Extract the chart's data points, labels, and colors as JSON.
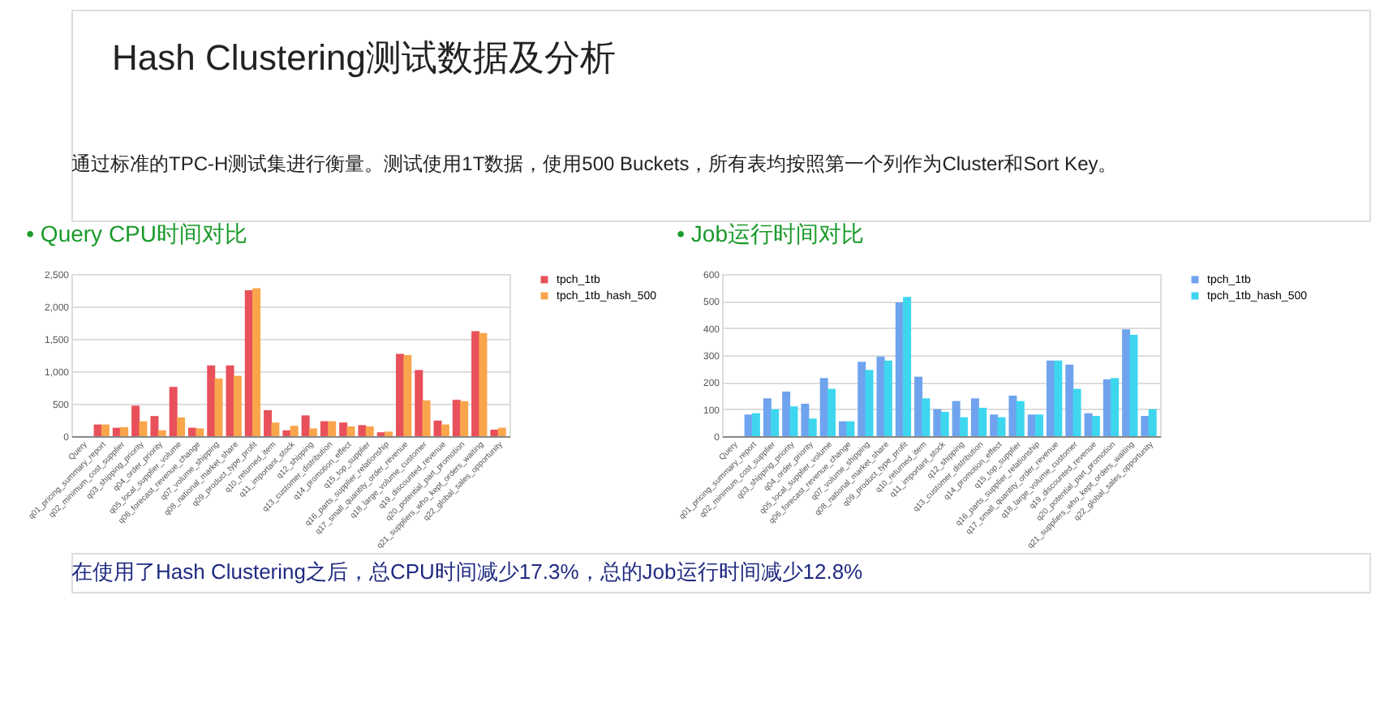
{
  "chart_data": [
    {
      "type": "bar",
      "title": "• Query CPU时间对比",
      "annotations": [
        "Hash Clustering测试数据及分析",
        "通过标准的TPC-H测试集进行衡量。测试使用1T数据，使用500 Buckets，所有表均按照第一个列作为Cluster和Sort Key。",
        "在使用了Hash Clustering之后，总CPU时间减少17.3%，总的Job运行时间减少12.8%"
      ],
      "categories": [
        "Query",
        "q01_pricing_summary_report",
        "q02_minimum_cost_supplier",
        "q03_shipping_priority",
        "q04_order_priority",
        "q05_local_supplier_volume",
        "q06_forecast_revenue_change",
        "q07_volume_shipping",
        "q08_national_market_share",
        "q09_product_type_profit",
        "q10_returned_item",
        "q11_important_stock",
        "q12_shipping",
        "q13_customer_distribution",
        "q14_promotion_effect",
        "q15_top_supplier",
        "q16_parts_supplier_relationship",
        "q17_small_quantity_order_revenue",
        "q18_large_volume_customer",
        "q19_discounted_revenue",
        "q20_potential_part_promotion",
        "q21_suppliers_who_kept_orders_waiting",
        "q22_global_sales_opportunity"
      ],
      "series": [
        {
          "name": "tpch_1tb",
          "color": "#e8505a",
          "values": [
            null,
            180,
            130,
            470,
            310,
            760,
            130,
            1090,
            1090,
            2250,
            400,
            90,
            320,
            230,
            210,
            170,
            60,
            1270,
            1020,
            240,
            560,
            1620,
            100
          ]
        },
        {
          "name": "tpch_1tb_hash_500",
          "color": "#f9a54c",
          "values": [
            null,
            180,
            140,
            230,
            90,
            290,
            120,
            890,
            930,
            2280,
            210,
            160,
            120,
            230,
            150,
            150,
            70,
            1250,
            550,
            180,
            540,
            1590,
            130
          ]
        }
      ],
      "ylim": [
        0,
        2500
      ],
      "yticks": [
        0,
        500,
        {
          "value": 1000,
          "label": "1,000"
        },
        {
          "value": 1500,
          "label": "1,500"
        },
        {
          "value": 2000,
          "label": "2,000"
        },
        {
          "value": 2500,
          "label": "2,500"
        }
      ],
      "grid": "y",
      "legend": "right"
    },
    {
      "type": "bar",
      "title": "• Job运行时间对比",
      "categories": [
        "Query",
        "q01_pricing_summary_report",
        "q02_minimum_cost_supplier",
        "q03_shipping_priority",
        "q04_order_priority",
        "q05_local_supplier_volume",
        "q06_forecast_revenue_change",
        "q07_volume_shipping",
        "q08_national_market_share",
        "q09_product_type_profit",
        "q10_returned_item",
        "q11_important_stock",
        "q12_shipping",
        "q13_customer_distribution",
        "q14_promotion_effect",
        "q15_top_supplier",
        "q16_parts_supplier_relationship",
        "q17_small_quantity_order_revenue",
        "q18_large_volume_customer",
        "q19_discounted_revenue",
        "q20_potential_part_promotion",
        "q21_suppliers_who_kept_orders_waiting",
        "q22_global_sales_opportunity"
      ],
      "series": [
        {
          "name": "tpch_1tb",
          "color": "#6fa3ee",
          "values": [
            null,
            80,
            140,
            165,
            120,
            215,
            55,
            275,
            295,
            495,
            220,
            100,
            130,
            140,
            80,
            150,
            80,
            280,
            265,
            85,
            210,
            395,
            75
          ]
        },
        {
          "name": "tpch_1tb_hash_500",
          "color": "#3ed6ef",
          "values": [
            null,
            85,
            100,
            110,
            65,
            175,
            55,
            245,
            280,
            515,
            140,
            90,
            70,
            105,
            70,
            130,
            80,
            280,
            175,
            75,
            215,
            375,
            100
          ]
        }
      ],
      "ylim": [
        0,
        600
      ],
      "yticks": [
        0,
        100,
        200,
        300,
        400,
        500,
        600
      ],
      "grid": "y",
      "legend": "right"
    }
  ]
}
